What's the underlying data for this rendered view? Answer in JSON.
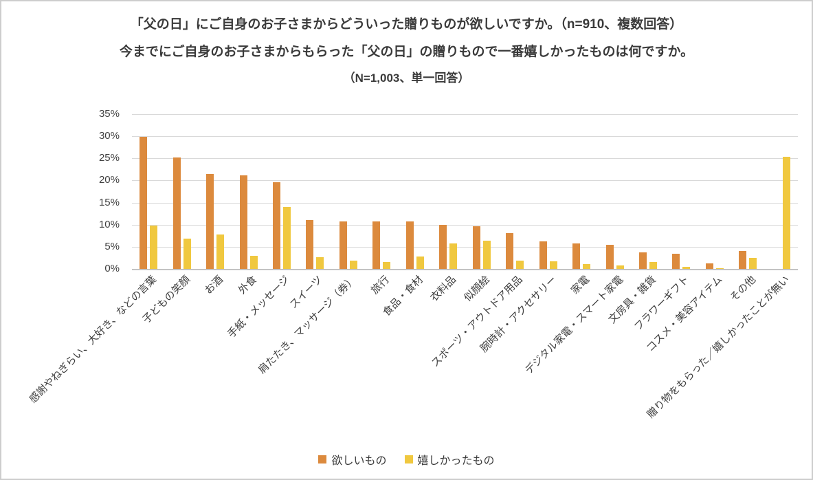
{
  "title": {
    "line1": "「父の日」にご自身のお子さまからどういった贈りものが欲しいですか。（n=910、複数回答）",
    "line2": "今までにご自身のお子さまからもらった「父の日」の贈りもので一番嬉しかったものは何ですか。",
    "line3": "（N=1,003、単一回答）"
  },
  "chart_data": {
    "type": "bar",
    "title": "「父の日」にご自身のお子さまからどういった贈りものが欲しいですか。（n=910、複数回答）／今までにご自身のお子さまからもらった「父の日」の贈りもので一番嬉しかったものは何ですか。（N=1,003、単一回答）",
    "categories": [
      "感謝やねぎらい、大好き、などの言葉",
      "子どもの笑顔",
      "お酒",
      "外食",
      "手紙・メッセージ",
      "スイーツ",
      "肩たたき、マッサージ（券）",
      "旅行",
      "食品・食材",
      "衣料品",
      "似顔絵",
      "スポーツ・アウトドア用品",
      "腕時計・アクセサリー",
      "家電",
      "デジタル家電・スマート家電",
      "文房具・雑貨",
      "フラワーギフト",
      "コスメ・美容アイテム",
      "その他",
      "贈り物をもらった／嬉しかったことが無い"
    ],
    "series": [
      {
        "name": "欲しいもの",
        "color": "#DC8A3D",
        "values": [
          29.9,
          25.2,
          21.5,
          21.2,
          19.6,
          11.0,
          10.8,
          10.7,
          10.8,
          9.9,
          9.7,
          8.1,
          6.2,
          5.8,
          5.4,
          3.7,
          3.4,
          1.3,
          4.1,
          null
        ]
      },
      {
        "name": "嬉しかったもの",
        "color": "#F0C83F",
        "values": [
          9.8,
          6.9,
          7.7,
          3.0,
          14.0,
          2.7,
          1.8,
          1.5,
          2.8,
          5.7,
          6.3,
          1.9,
          1.7,
          1.1,
          0.8,
          1.6,
          0.4,
          0.2,
          2.5,
          25.3
        ]
      }
    ],
    "ylabel": "",
    "xlabel": "",
    "ylim": [
      0,
      35
    ],
    "ytick_step": 5,
    "yticks": [
      "0%",
      "5%",
      "10%",
      "15%",
      "20%",
      "25%",
      "30%",
      "35%"
    ],
    "grid": true,
    "legend_position": "bottom",
    "colors": {
      "gridline": "#d9d9d9",
      "axis_line": "#c3c3c3",
      "text": "#3b3b3b"
    }
  }
}
